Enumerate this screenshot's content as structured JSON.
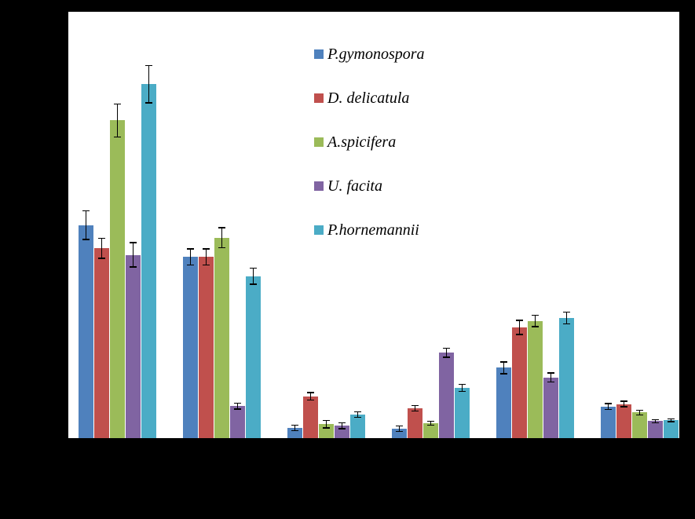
{
  "canvas": {
    "background": "#000000",
    "plot_background": "#FFFFFF",
    "axis_color": "#000000"
  },
  "legend": {
    "items": [
      {
        "label": "P.gymonospora",
        "color": "#4F81BD"
      },
      {
        "label": "D. delicatula",
        "color": "#C0504D"
      },
      {
        "label": "A.spicifera",
        "color": "#9BBB59"
      },
      {
        "label": "U. facita",
        "color": "#8064A2"
      },
      {
        "label": "P.hornemannii",
        "color": "#4BACC6"
      }
    ]
  },
  "chart_data": {
    "type": "bar",
    "title": "",
    "xlabel": "",
    "ylabel": "",
    "categories": [
      "",
      "",
      "",
      "",
      "",
      ""
    ],
    "ylim": [
      0,
      100
    ],
    "grid": false,
    "legend_position": "inside-top-center",
    "error_bars": true,
    "series": [
      {
        "name": "P.gymonospora",
        "color": "#4F81BD",
        "values": [
          50,
          42.5,
          2.4,
          2.2,
          16.5,
          7.4
        ],
        "errors": [
          3.5,
          2.0,
          0.8,
          0.8,
          1.5,
          0.8
        ]
      },
      {
        "name": "D. delicatula",
        "color": "#C0504D",
        "values": [
          44.5,
          42.5,
          9.8,
          7.0,
          26.0,
          8.0
        ],
        "errors": [
          2.5,
          2.0,
          1.0,
          0.8,
          1.8,
          0.8
        ]
      },
      {
        "name": "A.spicifera",
        "color": "#9BBB59",
        "values": [
          74.5,
          47.0,
          3.3,
          3.5,
          27.5,
          6.0
        ],
        "errors": [
          4.0,
          2.5,
          1.0,
          0.6,
          1.5,
          0.7
        ]
      },
      {
        "name": "U. facita",
        "color": "#8064A2",
        "values": [
          43.0,
          7.5,
          2.9,
          20.0,
          14.2,
          4.0
        ],
        "errors": [
          3.0,
          0.8,
          0.8,
          1.2,
          1.2,
          0.5
        ]
      },
      {
        "name": "P.hornemannii",
        "color": "#4BACC6",
        "values": [
          83.0,
          38.0,
          5.5,
          11.8,
          28.2,
          4.2
        ],
        "errors": [
          4.5,
          2.0,
          0.8,
          1.0,
          1.5,
          0.5
        ]
      }
    ]
  }
}
